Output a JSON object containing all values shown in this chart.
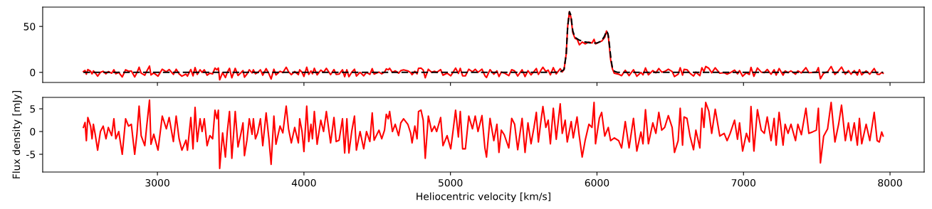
{
  "chart_data": [
    {
      "type": "line",
      "xlim": [
        2217,
        8233
      ],
      "ylim": [
        -11,
        71
      ],
      "xticks": [
        3000,
        4000,
        5000,
        6000,
        7000,
        8000
      ],
      "yticks": [
        0,
        50
      ],
      "tick_labels": "y",
      "grid": false,
      "series": [
        {
          "color": "#ff0000",
          "line_style": "solid",
          "x": [
            2495,
            2506,
            2515,
            2525,
            2544,
            2554,
            2563,
            2577,
            2592,
            2611,
            2630,
            2649,
            2665,
            2688,
            2703,
            2716,
            2736,
            2760,
            2783,
            2803,
            2822,
            2845,
            2860,
            2875,
            2889,
            2914,
            2927,
            2946,
            2956,
            2975,
            3004,
            3033,
            3061,
            3080,
            3109,
            3128,
            3148,
            3167,
            3195,
            3205,
            3228,
            3243,
            3257,
            3272,
            3291,
            3305,
            3320,
            3339,
            3358,
            3377,
            3393,
            3406,
            3416,
            3425,
            3445,
            3464,
            3477,
            3492,
            3508,
            3531,
            3550,
            3569,
            3584,
            3594,
            3611,
            3627,
            3646,
            3655,
            3669,
            3684,
            3703,
            3719,
            3742,
            3761,
            3776,
            3795,
            3809,
            3837,
            3856,
            3879,
            3895,
            3914,
            3937,
            3962,
            3971,
            3987,
            4000,
            4019,
            4033,
            4048,
            4058,
            4071,
            4090,
            4115,
            4134,
            4153,
            4182,
            4205,
            4220,
            4240,
            4263,
            4278,
            4293,
            4307,
            4326,
            4345,
            4358,
            4383,
            4408,
            4427,
            4450,
            4466,
            4479,
            4512,
            4531,
            4550,
            4562,
            4575,
            4585,
            4604,
            4623,
            4646,
            4661,
            4680,
            4709,
            4728,
            4738,
            4757,
            4772,
            4782,
            4799,
            4814,
            4828,
            4849,
            4872,
            4891,
            4906,
            4933,
            4949,
            4977,
            5002,
            5016,
            5035,
            5054,
            5067,
            5083,
            5102,
            5125,
            5150,
            5169,
            5188,
            5215,
            5235,
            5246,
            5270,
            5296,
            5317,
            5331,
            5347,
            5367,
            5398,
            5418,
            5438,
            5459,
            5489,
            5509,
            5529,
            5550,
            5570,
            5586,
            5600,
            5617,
            5631,
            5651,
            5667,
            5682,
            5702,
            5722,
            5749,
            5763,
            5775,
            5790,
            5800,
            5812,
            5822,
            5835,
            5850,
            5865,
            5880,
            5899,
            5919,
            5945,
            5966,
            5980,
            5990,
            6016,
            6032,
            6053,
            6065,
            6077,
            6093,
            6105,
            6118,
            6148,
            6168,
            6193,
            6219,
            6249,
            6272,
            6300,
            6314,
            6331,
            6351,
            6381,
            6402,
            6422,
            6442,
            6462,
            6487,
            6513,
            6529,
            6554,
            6568,
            6584,
            6594,
            6614,
            6635,
            6659,
            6675,
            6702,
            6716,
            6730,
            6742,
            6763,
            6783,
            6807,
            6838,
            6868,
            6888,
            6909,
            6939,
            6959,
            6973,
            6994,
            7020,
            7040,
            7051,
            7071,
            7095,
            7121,
            7142,
            7162,
            7188,
            7209,
            7223,
            7243,
            7270,
            7284,
            7304,
            7324,
            7355,
            7371,
            7395,
            7426,
            7446,
            7470,
            7497,
            7511,
            7525,
            7547,
            7574,
            7598,
            7624,
            7649,
            7669,
            7695,
            7716,
            7734,
            7756,
            7777,
            7791,
            7807,
            7837,
            7862,
            7892,
            7912,
            7927,
            7943,
            7953
          ],
          "values": [
            0.9,
            2.0,
            -2.0,
            3.1,
            1.2,
            -1.6,
            1.6,
            -0.9,
            -4.1,
            0,
            1.2,
            -1.6,
            0.9,
            -0.9,
            2.8,
            -1.6,
            0,
            -5,
            2.8,
            1.2,
            1.6,
            -5,
            -0.6,
            5.6,
            -0.9,
            -3.1,
            1.2,
            6.9,
            -2.8,
            -0.6,
            -4.1,
            3.4,
            0.6,
            3.1,
            -2.2,
            3.4,
            -1.6,
            -4.1,
            -1.9,
            -4.1,
            3.1,
            -3.8,
            5.3,
            -2.2,
            2.8,
            0,
            2.8,
            -3.1,
            -0.9,
            -1.6,
            4.7,
            2.8,
            4.7,
            -8.1,
            -0.3,
            -5.6,
            0,
            4.4,
            -5.9,
            4.4,
            -3.4,
            -0.6,
            1.9,
            -5.3,
            -1.9,
            2.8,
            -0.6,
            2.8,
            -1.6,
            -0.3,
            2.8,
            -3.1,
            4.1,
            -1.6,
            -7.2,
            3.4,
            -2.8,
            1.2,
            -0.3,
            5.6,
            0.6,
            -2.5,
            0.9,
            -2.5,
            2.8,
            0,
            -4.4,
            5.6,
            -2.2,
            1.6,
            -1.6,
            4.4,
            -2.8,
            2.5,
            0,
            4.4,
            -2.5,
            3.1,
            -2.2,
            -1.9,
            2.8,
            -4.7,
            2.8,
            -4.7,
            0,
            3.4,
            -4.1,
            0,
            -3.8,
            0,
            -2.2,
            4.1,
            -1.9,
            0.3,
            -1.6,
            0.3,
            3.8,
            2.8,
            4.4,
            0,
            1.6,
            -0.9,
            1.9,
            2.8,
            1.6,
            -0.3,
            -2.5,
            1.2,
            -1.6,
            4.4,
            4.7,
            2.5,
            -5.9,
            3.4,
            0,
            1.2,
            0,
            3.1,
            -3.1,
            -0.9,
            -3.8,
            -0.3,
            4.7,
            -1.2,
            4.4,
            -3.8,
            -3.8,
            3.4,
            0.6,
            3.4,
            0,
            3.5,
            -3.6,
            -5.6,
            2.9,
            -2.0,
            1.6,
            -4.6,
            0.3,
            -0.7,
            -3.6,
            2.9,
            1.6,
            -4.0,
            2.9,
            -4.6,
            1.9,
            -2.7,
            0.9,
            4.2,
            -2.3,
            2.2,
            5.5,
            0.9,
            2.5,
            -2.7,
            5.1,
            -1.7,
            4,
            0.5,
            3,
            20,
            50,
            66,
            60,
            43,
            37,
            36,
            30,
            33,
            31,
            33,
            32,
            36,
            31,
            33,
            34,
            38,
            45,
            40,
            14,
            4,
            -1,
            -2,
            -3.6,
            2.2,
            -3.6,
            2.9,
            -4.3,
            -0.1,
            -2.7,
            4.8,
            -2.7,
            1.9,
            -0.4,
            4.2,
            0.3,
            0.9,
            3.5,
            0.9,
            -4.6,
            -2.0,
            5.1,
            -3.0,
            3.2,
            2.9,
            -1.0,
            -4.0,
            0.3,
            -3.6,
            5.1,
            0.9,
            6.4,
            4.5,
            -0.4,
            4.9,
            -1.0,
            -0.4,
            -2.0,
            -0.4,
            2.5,
            -1.7,
            1.9,
            -4.3,
            -0.4,
            -2.3,
            5.5,
            -4.3,
            4.8,
            0.3,
            -0.4,
            3.2,
            -2.0,
            2.9,
            -3.0,
            4.2,
            -3.0,
            1.6,
            -0.4,
            1.6,
            -2.0,
            1.6,
            -0.7,
            5.1,
            -0.4,
            -0.1,
            0.3,
            5.1,
            -6.9,
            -1.0,
            0.6,
            6.4,
            -2.3,
            1.6,
            5.8,
            -2.0,
            1.9,
            -2.0,
            1.9,
            -3.0,
            2.9,
            -2.7,
            1.6,
            -2.0,
            4.2,
            -2.0,
            -2.3,
            -0.1,
            -1.0
          ]
        },
        {
          "color": "#000000",
          "line_style": "dashed",
          "x": [
            2495,
            5700,
            5750,
            5775,
            5790,
            5800,
            5812,
            5822,
            5835,
            5850,
            5880,
            5920,
            5960,
            6000,
            6030,
            6050,
            6065,
            6075,
            6085,
            6095,
            6105,
            6120,
            6140,
            7953
          ],
          "values": [
            0,
            0,
            0.5,
            3,
            20,
            50,
            66,
            62,
            45,
            38,
            35,
            33,
            32,
            32,
            34,
            39,
            45,
            42,
            30,
            15,
            5,
            1,
            0,
            0
          ]
        }
      ]
    },
    {
      "type": "line",
      "xlim": [
        2217,
        8233
      ],
      "ylim": [
        -8.9,
        7.5
      ],
      "xticks": [
        3000,
        4000,
        5000,
        6000,
        7000,
        8000
      ],
      "yticks": [
        -5,
        0,
        5
      ],
      "grid": false,
      "xlabel": "Heliocentric velocity [km/s]",
      "ylabel": "Flux density [mJy]",
      "series": [
        {
          "color": "#ff0000",
          "line_style": "solid",
          "x": [
            2495,
            2506,
            2515,
            2525,
            2544,
            2554,
            2563,
            2577,
            2592,
            2611,
            2630,
            2649,
            2665,
            2688,
            2703,
            2716,
            2736,
            2760,
            2783,
            2803,
            2822,
            2845,
            2860,
            2875,
            2889,
            2914,
            2927,
            2946,
            2956,
            2975,
            3004,
            3033,
            3061,
            3080,
            3109,
            3128,
            3148,
            3167,
            3195,
            3205,
            3228,
            3243,
            3257,
            3272,
            3291,
            3305,
            3320,
            3339,
            3358,
            3377,
            3393,
            3406,
            3416,
            3425,
            3445,
            3464,
            3477,
            3492,
            3508,
            3531,
            3550,
            3569,
            3584,
            3594,
            3611,
            3627,
            3646,
            3655,
            3669,
            3684,
            3703,
            3719,
            3742,
            3761,
            3776,
            3795,
            3809,
            3837,
            3856,
            3879,
            3895,
            3914,
            3937,
            3962,
            3971,
            3987,
            4000,
            4019,
            4033,
            4048,
            4058,
            4071,
            4090,
            4115,
            4134,
            4153,
            4182,
            4205,
            4220,
            4240,
            4263,
            4278,
            4293,
            4307,
            4326,
            4345,
            4358,
            4383,
            4408,
            4427,
            4450,
            4466,
            4479,
            4512,
            4531,
            4550,
            4562,
            4575,
            4585,
            4604,
            4623,
            4646,
            4661,
            4680,
            4709,
            4728,
            4738,
            4757,
            4772,
            4782,
            4799,
            4814,
            4828,
            4849,
            4872,
            4891,
            4906,
            4933,
            4949,
            4977,
            5002,
            5016,
            5035,
            5054,
            5067,
            5083,
            5102,
            5125,
            5150,
            5169,
            5188,
            5215,
            5235,
            5246,
            5270,
            5296,
            5317,
            5331,
            5347,
            5367,
            5398,
            5418,
            5438,
            5459,
            5489,
            5509,
            5529,
            5550,
            5570,
            5586,
            5600,
            5617,
            5631,
            5651,
            5667,
            5682,
            5702,
            5722,
            5749,
            5763,
            5783,
            5797,
            5824,
            5838,
            5864,
            5878,
            5899,
            5919,
            5945,
            5966,
            5980,
            5990,
            6016,
            6032,
            6053,
            6077,
            6093,
            6118,
            6148,
            6168,
            6193,
            6219,
            6249,
            6272,
            6300,
            6314,
            6331,
            6351,
            6381,
            6402,
            6422,
            6442,
            6462,
            6487,
            6513,
            6529,
            6554,
            6568,
            6584,
            6594,
            6614,
            6635,
            6659,
            6675,
            6702,
            6716,
            6730,
            6742,
            6763,
            6783,
            6807,
            6838,
            6868,
            6888,
            6909,
            6939,
            6959,
            6973,
            6994,
            7020,
            7040,
            7051,
            7071,
            7095,
            7121,
            7142,
            7162,
            7188,
            7209,
            7223,
            7243,
            7270,
            7284,
            7304,
            7324,
            7355,
            7371,
            7395,
            7426,
            7446,
            7470,
            7497,
            7511,
            7525,
            7547,
            7574,
            7598,
            7624,
            7649,
            7669,
            7695,
            7716,
            7734,
            7756,
            7777,
            7791,
            7807,
            7837,
            7862,
            7892,
            7912,
            7927,
            7943,
            7953
          ],
          "values": [
            0.9,
            2.0,
            -2.0,
            3.1,
            1.2,
            -1.6,
            1.6,
            -0.9,
            -4.1,
            0,
            1.2,
            -1.6,
            0.9,
            -0.9,
            2.8,
            -1.6,
            0,
            -5,
            2.8,
            1.2,
            1.6,
            -5,
            -0.6,
            5.6,
            -0.9,
            -3.1,
            1.2,
            6.9,
            -2.8,
            -0.6,
            -4.1,
            3.4,
            0.6,
            3.1,
            -2.2,
            3.4,
            -1.6,
            -4.1,
            -1.9,
            -4.1,
            3.1,
            -3.8,
            5.3,
            -2.2,
            2.8,
            0,
            2.8,
            -3.1,
            -0.9,
            -1.6,
            4.7,
            2.8,
            4.7,
            -8.1,
            -0.3,
            -5.6,
            0,
            4.4,
            -5.9,
            4.4,
            -3.4,
            -0.6,
            1.9,
            -5.3,
            -1.9,
            2.8,
            -0.6,
            2.8,
            -1.6,
            -0.3,
            2.8,
            -3.1,
            4.1,
            -1.6,
            -7.2,
            3.4,
            -2.8,
            1.2,
            -0.3,
            5.6,
            0.6,
            -2.5,
            0.9,
            -2.5,
            2.8,
            0,
            -4.4,
            5.6,
            -2.2,
            1.6,
            -1.6,
            4.4,
            -2.8,
            2.5,
            0,
            4.4,
            -2.5,
            3.1,
            -2.2,
            -1.9,
            2.8,
            -4.7,
            2.8,
            -4.7,
            0,
            3.4,
            -4.1,
            0,
            -3.8,
            0,
            -2.2,
            4.1,
            -1.9,
            0.3,
            -1.6,
            0.3,
            3.8,
            2.8,
            4.4,
            0,
            1.6,
            -0.9,
            1.9,
            2.8,
            1.6,
            -0.3,
            -2.5,
            1.2,
            -1.6,
            4.4,
            4.7,
            2.5,
            -5.9,
            3.4,
            0,
            1.2,
            0,
            3.1,
            -3.1,
            -0.9,
            -3.8,
            -0.3,
            4.7,
            -1.2,
            4.4,
            -3.8,
            -3.8,
            3.4,
            0.6,
            3.4,
            0,
            3.5,
            -3.6,
            -5.6,
            2.9,
            -2.0,
            1.6,
            -4.6,
            0.3,
            -0.7,
            -3.6,
            2.9,
            1.6,
            -4.0,
            2.9,
            -4.6,
            1.9,
            -2.7,
            0.9,
            4.2,
            -2.3,
            2.2,
            5.5,
            0.9,
            2.5,
            -2.7,
            5.1,
            -1.7,
            6.1,
            -0.4,
            2.5,
            -2.3,
            2.2,
            -1.4,
            3.2,
            -0.7,
            -5.6,
            -2.0,
            1.6,
            0.9,
            6.4,
            -2.7,
            2.9,
            4.2,
            -1.0,
            0.9,
            -2.0,
            -1.4,
            -2.0,
            -3.6,
            2.2,
            -3.6,
            2.9,
            -4.3,
            -0.1,
            -2.7,
            4.8,
            -2.7,
            1.9,
            -0.4,
            4.2,
            0.3,
            0.9,
            3.5,
            0.9,
            -4.6,
            -2.0,
            5.1,
            -3.0,
            3.2,
            2.9,
            -1.0,
            -4.0,
            0.3,
            -3.6,
            5.1,
            0.9,
            6.4,
            4.5,
            -0.4,
            4.9,
            -1.0,
            -0.4,
            -2.0,
            -0.4,
            2.5,
            -1.7,
            1.9,
            -4.3,
            -0.4,
            -2.3,
            5.5,
            -4.3,
            4.8,
            0.3,
            -0.4,
            3.2,
            -2.0,
            2.9,
            -3.0,
            4.2,
            -3.0,
            1.6,
            -0.4,
            1.6,
            -2.0,
            1.6,
            -0.7,
            5.1,
            -0.4,
            -0.1,
            0.3,
            5.1,
            -6.9,
            -1.0,
            0.6,
            6.4,
            -2.3,
            1.6,
            5.8,
            -2.0,
            1.9,
            -2.0,
            1.9,
            -3.0,
            2.9,
            -2.7,
            1.6,
            -2.0,
            4.2,
            -2.0,
            -2.3,
            -0.1,
            -1.0
          ]
        }
      ]
    }
  ]
}
